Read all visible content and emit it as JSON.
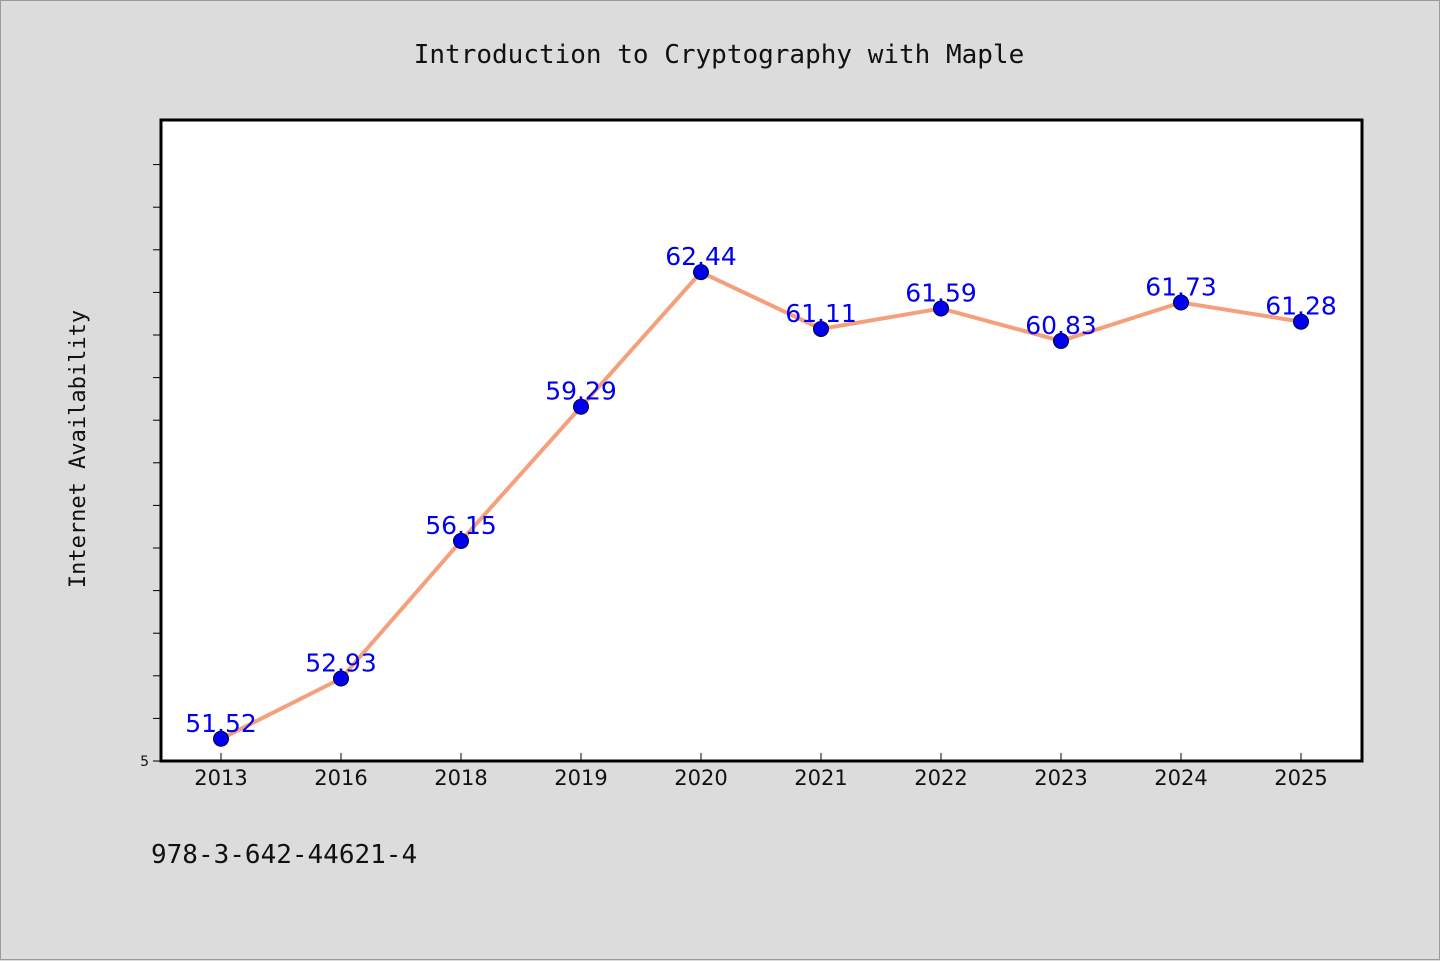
{
  "chart_data": {
    "type": "line",
    "title": "Introduction to Cryptography with Maple",
    "xlabel": "",
    "ylabel": "Internet Availability",
    "categories": [
      "2013",
      "2016",
      "2018",
      "2019",
      "2020",
      "2021",
      "2022",
      "2023",
      "2024",
      "2025"
    ],
    "series": [
      {
        "values": [
          51.52,
          52.93,
          56.15,
          59.29,
          62.44,
          61.11,
          61.59,
          60.83,
          61.73,
          61.28
        ],
        "labels": [
          "51.52",
          "52.93",
          "56.15",
          "59.29",
          "62.44",
          "61.11",
          "61.59",
          "60.83",
          "61.73",
          "61.28"
        ],
        "line_color": "#f4a07c",
        "marker_color": "#0000ee"
      }
    ],
    "ylim": [
      51.0,
      66.0
    ],
    "y_tick_labels": [
      "5"
    ],
    "grid": false,
    "legend": "none"
  },
  "footer": {
    "isbn": "978-3-642-44621-4"
  },
  "colors": {
    "background": "#dcdcdc",
    "plot_background": "#ffffff",
    "line": "#f4a07c",
    "marker": "#0000ee",
    "label": "#0000ee"
  }
}
